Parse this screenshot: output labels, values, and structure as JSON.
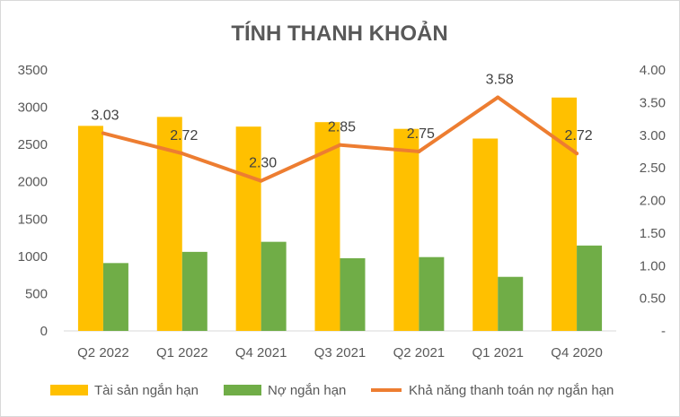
{
  "chart_data": {
    "type": "bar",
    "title": "TÍNH THANH KHOẢN",
    "categories": [
      "Q2 2022",
      "Q1 2022",
      "Q4 2021",
      "Q3 2021",
      "Q2 2021",
      "Q1 2021",
      "Q4 2020"
    ],
    "series": [
      {
        "name": "Tài sản ngắn hạn",
        "type": "bar",
        "axis": "left",
        "color": "#FFC000",
        "values": [
          2750,
          2870,
          2740,
          2800,
          2710,
          2580,
          3130
        ]
      },
      {
        "name": "Nợ ngắn hạn",
        "type": "bar",
        "axis": "left",
        "color": "#70AD47",
        "values": [
          910,
          1060,
          1195,
          975,
          990,
          725,
          1145
        ]
      },
      {
        "name": "Khả năng thanh toán nợ ngắn hạn",
        "type": "line",
        "axis": "right",
        "color": "#ED7D31",
        "values": [
          3.03,
          2.72,
          2.3,
          2.85,
          2.75,
          3.58,
          2.72
        ],
        "labels": [
          "3.03",
          "2.72",
          "2.30",
          "2.85",
          "2.75",
          "3.58",
          "2.72"
        ]
      }
    ],
    "y_left": {
      "min": 0,
      "max": 3500,
      "step": 500,
      "tick_labels": [
        "0",
        "500",
        "1000",
        "1500",
        "2000",
        "2500",
        "3000",
        "3500"
      ]
    },
    "y_right": {
      "min": 0,
      "max": 4,
      "step": 0.5,
      "tick_labels": [
        "-",
        "0.50",
        "1.00",
        "1.50",
        "2.00",
        "2.50",
        "3.00",
        "3.50",
        "4.00"
      ]
    },
    "grid": false,
    "legend": "bottom"
  }
}
